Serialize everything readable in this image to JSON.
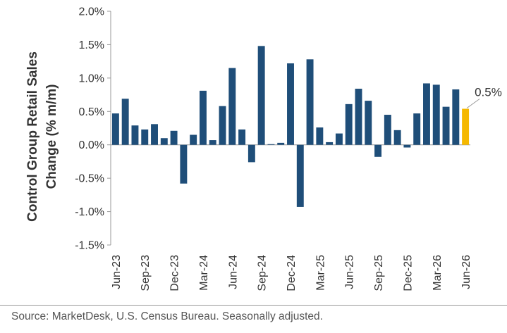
{
  "chart_data": {
    "type": "bar",
    "ylabel_line1": "Control Group Retail Sales",
    "ylabel_line2": "Change (% m/m)",
    "ylim": [
      -1.5,
      2.0
    ],
    "yticks": [
      -1.5,
      -1.0,
      -0.5,
      0.0,
      0.5,
      1.0,
      1.5,
      2.0
    ],
    "ytick_labels": [
      "-1.5%",
      "-1.0%",
      "-0.5%",
      "0.0%",
      "0.5%",
      "1.0%",
      "1.5%",
      "2.0%"
    ],
    "grid": false,
    "categories": [
      "Jun-23",
      "Jul-23",
      "Aug-23",
      "Sep-23",
      "Oct-23",
      "Nov-23",
      "Dec-23",
      "Jan-24",
      "Feb-24",
      "Mar-24",
      "Apr-24",
      "May-24",
      "Jun-24",
      "Jul-24",
      "Aug-24",
      "Sep-24",
      "Oct-24",
      "Nov-24",
      "Dec-24",
      "Jan-25",
      "Feb-25",
      "Mar-25",
      "Apr-25",
      "May-25",
      "Jun-25",
      "Jul-25",
      "Aug-25",
      "Sep-25",
      "Oct-25",
      "Nov-25",
      "Dec-25",
      "Jan-26",
      "Feb-26",
      "Mar-26",
      "Apr-26",
      "May-26",
      "Jun-26"
    ],
    "xtick_labels": [
      "Jun-23",
      "Sep-23",
      "Dec-23",
      "Mar-24",
      "Jun-24",
      "Sep-24",
      "Dec-24",
      "Mar-25",
      "Jun-25",
      "Sep-25",
      "Dec-25",
      "Mar-26",
      "Jun-26"
    ],
    "values": [
      0.47,
      0.69,
      0.29,
      0.23,
      0.31,
      0.1,
      0.21,
      -0.58,
      0.15,
      0.81,
      0.07,
      0.58,
      1.15,
      0.23,
      -0.26,
      1.48,
      0.01,
      0.03,
      1.22,
      -0.93,
      1.28,
      0.26,
      0.04,
      0.17,
      0.61,
      0.84,
      0.66,
      -0.18,
      0.45,
      0.22,
      -0.04,
      0.47,
      0.92,
      0.9,
      0.57,
      0.83,
      0.54
    ],
    "highlight_index": 36,
    "annotation": "0.5%",
    "colors": {
      "bar": "#1f4e79",
      "highlight": "#f5b800",
      "axis": "#999999",
      "text": "#333333"
    }
  },
  "footer": {
    "source": "Source: MarketDesk, U.S. Census Bureau. Seasonally adjusted."
  }
}
